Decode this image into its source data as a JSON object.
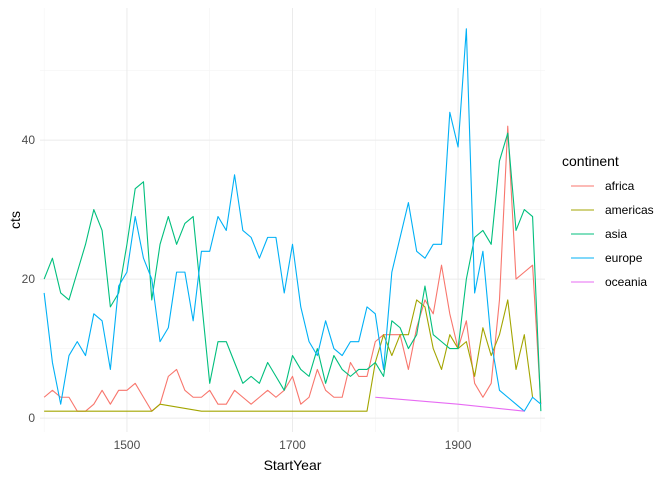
{
  "chart_data": {
    "type": "line",
    "title": "",
    "xlabel": "StartYear",
    "ylabel": "cts",
    "xlim": [
      1395,
      2005
    ],
    "ylim": [
      -2,
      59
    ],
    "x_ticks": [
      1500,
      1700,
      1900
    ],
    "x_minor_ticks": [
      1400,
      1600,
      1800,
      2000
    ],
    "y_ticks": [
      0,
      20,
      40
    ],
    "y_minor_ticks": [
      10,
      30,
      50
    ],
    "grid": true,
    "legend": {
      "title": "continent",
      "placement": "right"
    },
    "series": [
      {
        "name": "africa",
        "color": "#F8766D",
        "points": [
          [
            1400,
            3
          ],
          [
            1410,
            4
          ],
          [
            1420,
            3
          ],
          [
            1430,
            3
          ],
          [
            1440,
            1
          ],
          [
            1450,
            1
          ],
          [
            1460,
            2
          ],
          [
            1470,
            4
          ],
          [
            1480,
            2
          ],
          [
            1490,
            4
          ],
          [
            1500,
            4
          ],
          [
            1510,
            5
          ],
          [
            1520,
            3
          ],
          [
            1530,
            1
          ],
          [
            1540,
            2
          ],
          [
            1550,
            6
          ],
          [
            1560,
            7
          ],
          [
            1570,
            4
          ],
          [
            1580,
            3
          ],
          [
            1590,
            3
          ],
          [
            1600,
            4
          ],
          [
            1610,
            2
          ],
          [
            1620,
            2
          ],
          [
            1630,
            4
          ],
          [
            1640,
            3
          ],
          [
            1650,
            2
          ],
          [
            1660,
            3
          ],
          [
            1670,
            4
          ],
          [
            1680,
            3
          ],
          [
            1690,
            4
          ],
          [
            1700,
            6
          ],
          [
            1710,
            2
          ],
          [
            1720,
            3
          ],
          [
            1730,
            7
          ],
          [
            1740,
            4
          ],
          [
            1750,
            3
          ],
          [
            1760,
            3
          ],
          [
            1770,
            8
          ],
          [
            1780,
            6
          ],
          [
            1790,
            6
          ],
          [
            1800,
            11
          ],
          [
            1810,
            12
          ],
          [
            1820,
            12
          ],
          [
            1830,
            12
          ],
          [
            1840,
            7
          ],
          [
            1850,
            13
          ],
          [
            1860,
            17
          ],
          [
            1870,
            15
          ],
          [
            1880,
            22
          ],
          [
            1890,
            15
          ],
          [
            1900,
            10
          ],
          [
            1910,
            14
          ],
          [
            1920,
            5
          ],
          [
            1930,
            3
          ],
          [
            1940,
            5
          ],
          [
            1950,
            17
          ],
          [
            1960,
            42
          ],
          [
            1970,
            20
          ],
          [
            1980,
            21
          ],
          [
            1990,
            22
          ],
          [
            2000,
            2
          ]
        ]
      },
      {
        "name": "americas",
        "color": "#A3A500",
        "points": [
          [
            1400,
            1
          ],
          [
            1410,
            1
          ],
          [
            1440,
            1
          ],
          [
            1450,
            1
          ],
          [
            1460,
            1
          ],
          [
            1480,
            1
          ],
          [
            1500,
            1
          ],
          [
            1520,
            1
          ],
          [
            1530,
            1
          ],
          [
            1540,
            2
          ],
          [
            1590,
            1
          ],
          [
            1600,
            1
          ],
          [
            1650,
            1
          ],
          [
            1700,
            1
          ],
          [
            1750,
            1
          ],
          [
            1790,
            1
          ],
          [
            1800,
            8
          ],
          [
            1810,
            12
          ],
          [
            1820,
            9
          ],
          [
            1830,
            12
          ],
          [
            1840,
            12
          ],
          [
            1850,
            17
          ],
          [
            1860,
            16
          ],
          [
            1870,
            10
          ],
          [
            1880,
            7
          ],
          [
            1890,
            12
          ],
          [
            1900,
            10
          ],
          [
            1910,
            11
          ],
          [
            1920,
            6
          ],
          [
            1930,
            13
          ],
          [
            1940,
            9
          ],
          [
            1950,
            12
          ],
          [
            1960,
            17
          ],
          [
            1970,
            7
          ],
          [
            1980,
            12
          ],
          [
            1990,
            3
          ]
        ]
      },
      {
        "name": "asia",
        "color": "#00BF7D",
        "points": [
          [
            1400,
            20
          ],
          [
            1410,
            23
          ],
          [
            1420,
            18
          ],
          [
            1430,
            17
          ],
          [
            1440,
            21
          ],
          [
            1450,
            25
          ],
          [
            1460,
            30
          ],
          [
            1470,
            27
          ],
          [
            1480,
            16
          ],
          [
            1490,
            18
          ],
          [
            1500,
            25
          ],
          [
            1510,
            33
          ],
          [
            1520,
            34
          ],
          [
            1530,
            17
          ],
          [
            1540,
            25
          ],
          [
            1550,
            29
          ],
          [
            1560,
            25
          ],
          [
            1570,
            28
          ],
          [
            1580,
            29
          ],
          [
            1590,
            17
          ],
          [
            1600,
            5
          ],
          [
            1610,
            11
          ],
          [
            1620,
            11
          ],
          [
            1630,
            8
          ],
          [
            1640,
            5
          ],
          [
            1650,
            6
          ],
          [
            1660,
            5
          ],
          [
            1670,
            8
          ],
          [
            1680,
            6
          ],
          [
            1690,
            4
          ],
          [
            1700,
            9
          ],
          [
            1710,
            7
          ],
          [
            1720,
            6
          ],
          [
            1730,
            10
          ],
          [
            1740,
            5
          ],
          [
            1750,
            9
          ],
          [
            1760,
            7
          ],
          [
            1770,
            6
          ],
          [
            1780,
            7
          ],
          [
            1790,
            7
          ],
          [
            1800,
            8
          ],
          [
            1810,
            6
          ],
          [
            1820,
            14
          ],
          [
            1830,
            13
          ],
          [
            1840,
            10
          ],
          [
            1850,
            12
          ],
          [
            1860,
            19
          ],
          [
            1870,
            12
          ],
          [
            1880,
            11
          ],
          [
            1890,
            10
          ],
          [
            1900,
            10
          ],
          [
            1910,
            20
          ],
          [
            1920,
            26
          ],
          [
            1930,
            27
          ],
          [
            1940,
            25
          ],
          [
            1950,
            37
          ],
          [
            1960,
            41
          ],
          [
            1970,
            27
          ],
          [
            1980,
            30
          ],
          [
            1990,
            29
          ],
          [
            2000,
            1
          ]
        ]
      },
      {
        "name": "europe",
        "color": "#00B0F6",
        "points": [
          [
            1400,
            18
          ],
          [
            1410,
            8
          ],
          [
            1420,
            2
          ],
          [
            1430,
            9
          ],
          [
            1440,
            11
          ],
          [
            1450,
            9
          ],
          [
            1460,
            15
          ],
          [
            1470,
            14
          ],
          [
            1480,
            7
          ],
          [
            1490,
            19
          ],
          [
            1500,
            21
          ],
          [
            1510,
            29
          ],
          [
            1520,
            23
          ],
          [
            1530,
            20
          ],
          [
            1540,
            11
          ],
          [
            1550,
            13
          ],
          [
            1560,
            21
          ],
          [
            1570,
            21
          ],
          [
            1580,
            14
          ],
          [
            1590,
            24
          ],
          [
            1600,
            24
          ],
          [
            1610,
            29
          ],
          [
            1620,
            27
          ],
          [
            1630,
            35
          ],
          [
            1640,
            27
          ],
          [
            1650,
            26
          ],
          [
            1660,
            23
          ],
          [
            1670,
            26
          ],
          [
            1680,
            26
          ],
          [
            1690,
            18
          ],
          [
            1700,
            25
          ],
          [
            1710,
            16
          ],
          [
            1720,
            11
          ],
          [
            1730,
            9
          ],
          [
            1740,
            14
          ],
          [
            1750,
            10
          ],
          [
            1760,
            9
          ],
          [
            1770,
            11
          ],
          [
            1780,
            11
          ],
          [
            1790,
            16
          ],
          [
            1800,
            15
          ],
          [
            1810,
            7
          ],
          [
            1820,
            21
          ],
          [
            1830,
            26
          ],
          [
            1840,
            31
          ],
          [
            1850,
            24
          ],
          [
            1860,
            23
          ],
          [
            1870,
            25
          ],
          [
            1880,
            25
          ],
          [
            1890,
            44
          ],
          [
            1900,
            39
          ],
          [
            1910,
            56
          ],
          [
            1920,
            18
          ],
          [
            1930,
            24
          ],
          [
            1940,
            11
          ],
          [
            1950,
            4
          ],
          [
            1960,
            3
          ],
          [
            1970,
            2
          ],
          [
            1980,
            1
          ],
          [
            1990,
            3
          ],
          [
            2000,
            2
          ]
        ]
      },
      {
        "name": "oceania",
        "color": "#E76BF3",
        "points": [
          [
            1800,
            3
          ],
          [
            1900,
            2
          ],
          [
            1980,
            1
          ]
        ]
      }
    ]
  }
}
